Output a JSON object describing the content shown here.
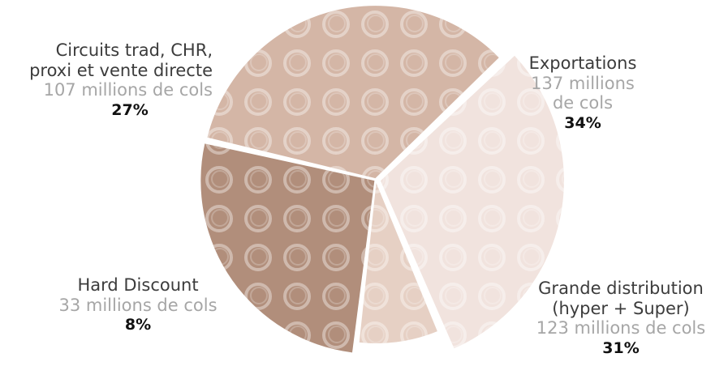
{
  "chart_data": {
    "type": "pie",
    "slices": [
      {
        "key": "exp",
        "line1": "Exportations",
        "line2": "",
        "sub1": "137 millions",
        "sub2": "de cols",
        "value": 137,
        "percent": "34%",
        "color": "#d4b6a6"
      },
      {
        "key": "gd",
        "line1": "Grande distribution",
        "line2": "(hyper + Super)",
        "sub1": "123 millions de cols",
        "sub2": "",
        "value": 123,
        "percent": "31%",
        "color": "#f1e3de"
      },
      {
        "key": "hd",
        "line1": "Hard Discount",
        "line2": "",
        "sub1": "33 millions de cols",
        "sub2": "",
        "value": 33,
        "percent": "8%",
        "color": "#e6d0c4"
      },
      {
        "key": "circ",
        "line1": "Circuits trad, CHR,",
        "line2": "proxi et vente directe",
        "sub1": "107 millions de cols",
        "sub2": "",
        "value": 107,
        "percent": "27%",
        "color": "#b18e7b"
      }
    ]
  }
}
